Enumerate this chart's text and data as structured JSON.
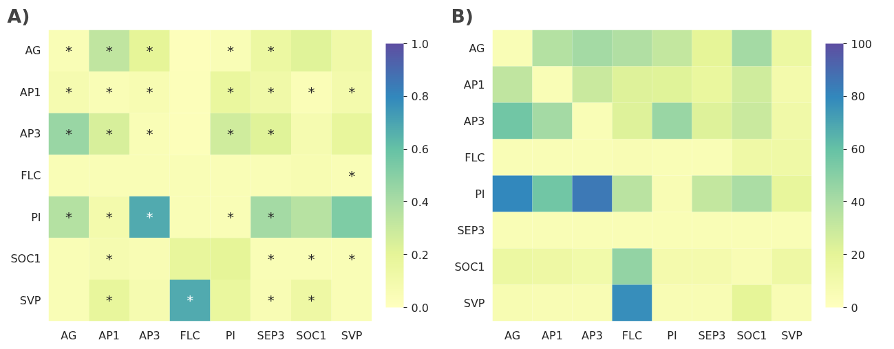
{
  "chart_data": [
    {
      "type": "heatmap",
      "title": "A)",
      "categories": [
        "AG",
        "AP1",
        "AP3",
        "FLC",
        "PI",
        "SEP3",
        "SOC1",
        "SVP"
      ],
      "y_categories": [
        "AG",
        "AP1",
        "AP3",
        "FLC",
        "PI",
        "SOC1",
        "SVP"
      ],
      "cells": [
        [
          0.05,
          0.33,
          0.2,
          0.02,
          0.05,
          0.15,
          0.22,
          0.12
        ],
        [
          0.08,
          0.05,
          0.07,
          0.03,
          0.17,
          0.12,
          0.04,
          0.1
        ],
        [
          0.45,
          0.25,
          0.05,
          0.03,
          0.28,
          0.22,
          0.08,
          0.18
        ],
        [
          0.05,
          0.05,
          0.05,
          0.05,
          0.05,
          0.05,
          0.07,
          0.05
        ],
        [
          0.37,
          0.1,
          0.68,
          0.05,
          0.05,
          0.42,
          0.36,
          0.53
        ],
        [
          0.05,
          0.08,
          0.06,
          0.18,
          0.2,
          0.05,
          0.05,
          0.05
        ],
        [
          0.05,
          0.18,
          0.08,
          0.68,
          0.17,
          0.06,
          0.14,
          0.05
        ]
      ],
      "cell_labels": [
        [
          "*",
          "*",
          "*",
          null,
          "*",
          "*",
          null,
          null
        ],
        [
          "*",
          "*",
          "*",
          null,
          "*",
          "*",
          "*",
          "*"
        ],
        [
          "*",
          "*",
          "*",
          null,
          "*",
          "*",
          null,
          null
        ],
        [
          null,
          null,
          null,
          null,
          null,
          null,
          null,
          "*"
        ],
        [
          "*",
          "*",
          "*",
          null,
          "*",
          "*",
          null,
          null
        ],
        [
          null,
          "*",
          null,
          null,
          null,
          "*",
          "*",
          "*"
        ],
        [
          null,
          "*",
          null,
          "*",
          null,
          "*",
          "*",
          null
        ]
      ],
      "clim": [
        0,
        1
      ],
      "cticks": [
        {
          "value": 0,
          "label": "0.0"
        },
        {
          "value": 0.2,
          "label": "0.2"
        },
        {
          "value": 0.4,
          "label": "0.4"
        },
        {
          "value": 0.6,
          "label": "0.6"
        },
        {
          "value": 0.8,
          "label": "0.8"
        },
        {
          "value": 1,
          "label": "1.0"
        }
      ]
    },
    {
      "type": "heatmap",
      "title": "B)",
      "categories": [
        "AG",
        "AP1",
        "AP3",
        "FLC",
        "PI",
        "SEP3",
        "SOC1",
        "SVP"
      ],
      "y_categories": [
        "AG",
        "AP1",
        "AP3",
        "FLC",
        "PI",
        "SEP3",
        "SOC1",
        "SVP"
      ],
      "cells": [
        [
          5,
          37,
          42,
          38,
          32,
          20,
          42,
          15
        ],
        [
          33,
          5,
          30,
          23,
          22,
          17,
          28,
          10
        ],
        [
          57,
          42,
          5,
          23,
          45,
          23,
          30,
          12
        ],
        [
          5,
          5,
          5,
          6,
          5,
          5,
          13,
          13
        ],
        [
          80,
          57,
          85,
          35,
          6,
          32,
          40,
          18
        ],
        [
          5,
          5,
          5,
          5,
          5,
          5,
          5,
          5
        ],
        [
          15,
          14,
          11,
          47,
          9,
          9,
          6,
          14
        ],
        [
          7,
          6,
          6,
          78,
          6,
          6,
          20,
          6
        ]
      ],
      "clim": [
        0,
        100
      ],
      "cticks": [
        0,
        20,
        40,
        60,
        80,
        100
      ]
    }
  ]
}
